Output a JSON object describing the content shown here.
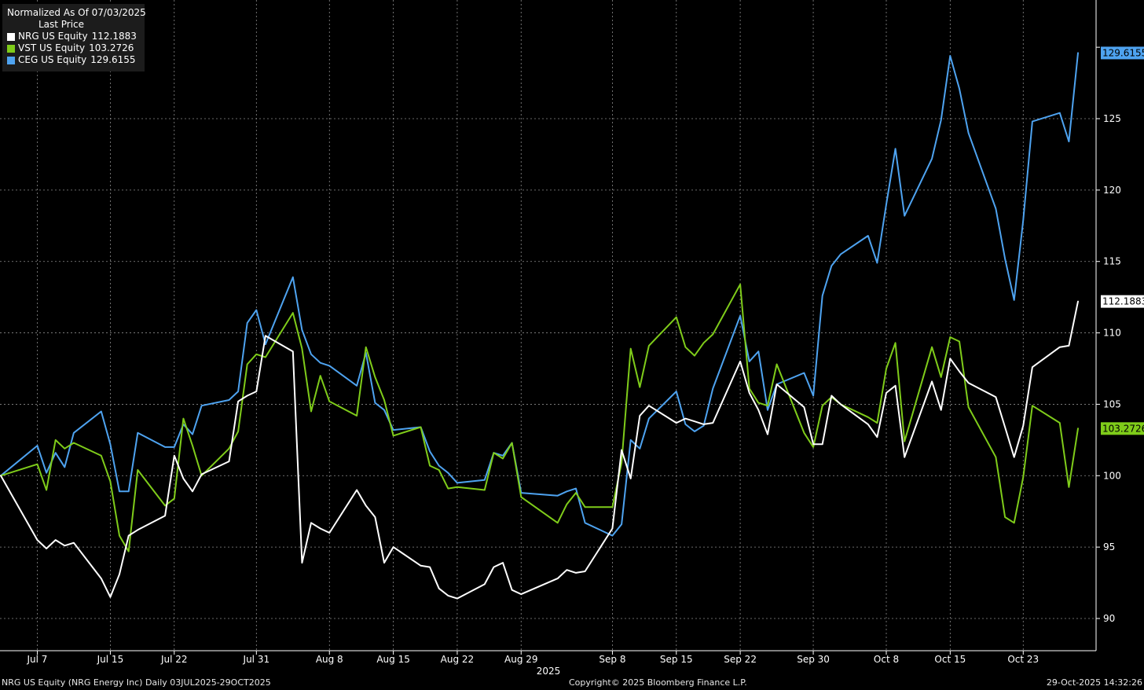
{
  "legend": {
    "title": "Normalized As Of 07/03/2025",
    "subtitle": "Last Price",
    "entries": [
      {
        "name": "NRG US Equity",
        "value": "112.1883",
        "color": "#ffffff"
      },
      {
        "name": "VST US Equity",
        "value": "103.2726",
        "color": "#7fcc1a"
      },
      {
        "name": "CEG US Equity",
        "value": "129.6155",
        "color": "#4ea3f0"
      }
    ]
  },
  "footer": {
    "left": "NRG US Equity (NRG Energy Inc) Daily 03JUL2025-29OCT2025",
    "center": "Copyright© 2025 Bloomberg Finance L.P.",
    "right": "29-Oct-2025 14:32:26"
  },
  "chart_data": {
    "type": "line",
    "x": [
      "2025-07-03",
      "2025-07-07",
      "2025-07-08",
      "2025-07-09",
      "2025-07-10",
      "2025-07-11",
      "2025-07-14",
      "2025-07-15",
      "2025-07-16",
      "2025-07-17",
      "2025-07-18",
      "2025-07-21",
      "2025-07-22",
      "2025-07-23",
      "2025-07-24",
      "2025-07-25",
      "2025-07-28",
      "2025-07-29",
      "2025-07-30",
      "2025-07-31",
      "2025-08-01",
      "2025-08-04",
      "2025-08-05",
      "2025-08-06",
      "2025-08-07",
      "2025-08-08",
      "2025-08-11",
      "2025-08-12",
      "2025-08-13",
      "2025-08-14",
      "2025-08-15",
      "2025-08-18",
      "2025-08-19",
      "2025-08-20",
      "2025-08-21",
      "2025-08-22",
      "2025-08-25",
      "2025-08-26",
      "2025-08-27",
      "2025-08-28",
      "2025-08-29",
      "2025-09-02",
      "2025-09-03",
      "2025-09-04",
      "2025-09-05",
      "2025-09-08",
      "2025-09-09",
      "2025-09-10",
      "2025-09-11",
      "2025-09-12",
      "2025-09-15",
      "2025-09-16",
      "2025-09-17",
      "2025-09-18",
      "2025-09-19",
      "2025-09-22",
      "2025-09-23",
      "2025-09-24",
      "2025-09-25",
      "2025-09-26",
      "2025-09-29",
      "2025-09-30",
      "2025-10-01",
      "2025-10-02",
      "2025-10-03",
      "2025-10-06",
      "2025-10-07",
      "2025-10-08",
      "2025-10-09",
      "2025-10-10",
      "2025-10-13",
      "2025-10-14",
      "2025-10-15",
      "2025-10-16",
      "2025-10-17",
      "2025-10-20",
      "2025-10-21",
      "2025-10-22",
      "2025-10-23",
      "2025-10-24",
      "2025-10-27",
      "2025-10-28",
      "2025-10-29"
    ],
    "series": [
      {
        "name": "NRG US Equity",
        "color": "#ffffff",
        "values": [
          100.0,
          95.5,
          94.9,
          95.5,
          95.1,
          95.3,
          92.8,
          91.5,
          93.1,
          95.8,
          96.2,
          97.2,
          101.4,
          99.8,
          98.9,
          100.1,
          101.0,
          105.2,
          105.6,
          105.9,
          109.8,
          108.7,
          93.9,
          96.7,
          96.3,
          96.0,
          99.0,
          97.9,
          97.1,
          93.9,
          95.0,
          93.7,
          93.6,
          92.1,
          91.6,
          91.4,
          92.4,
          93.6,
          93.9,
          92.0,
          91.7,
          92.8,
          93.4,
          93.2,
          93.3,
          96.3,
          101.8,
          99.8,
          104.2,
          104.9,
          103.7,
          104.0,
          103.8,
          103.6,
          103.7,
          108.0,
          105.8,
          104.6,
          102.9,
          106.4,
          104.8,
          102.2,
          102.2,
          105.6,
          105.0,
          103.6,
          102.7,
          105.8,
          106.3,
          101.3,
          106.6,
          104.6,
          108.2,
          107.3,
          106.5,
          105.5,
          103.4,
          101.3,
          103.5,
          107.6,
          109.0,
          109.1,
          112.2
        ]
      },
      {
        "name": "VST US Equity",
        "color": "#7fcc1a",
        "values": [
          100.0,
          100.8,
          99.0,
          102.5,
          101.9,
          102.3,
          101.4,
          99.6,
          95.8,
          94.7,
          100.4,
          97.9,
          98.4,
          104.0,
          102.1,
          100.0,
          101.9,
          103.1,
          107.8,
          108.5,
          108.3,
          111.4,
          108.9,
          104.5,
          107.0,
          105.2,
          104.2,
          109.0,
          106.9,
          105.3,
          102.8,
          103.4,
          100.7,
          100.4,
          99.1,
          99.2,
          99.0,
          101.6,
          101.2,
          102.3,
          98.5,
          96.7,
          98.0,
          98.8,
          97.8,
          97.8,
          100.9,
          108.9,
          106.2,
          109.1,
          111.1,
          109.0,
          108.4,
          109.3,
          109.9,
          113.4,
          106.1,
          105.1,
          104.9,
          107.8,
          103.0,
          102.0,
          104.9,
          105.5,
          105.0,
          104.1,
          103.7,
          107.5,
          109.3,
          102.4,
          109.0,
          106.9,
          109.7,
          109.4,
          104.8,
          101.3,
          97.1,
          96.7,
          99.9,
          104.9,
          103.7,
          99.2,
          103.3
        ]
      },
      {
        "name": "CEG US Equity",
        "color": "#4ea3f0",
        "values": [
          100.0,
          102.1,
          100.2,
          101.6,
          100.6,
          103.0,
          104.5,
          102.2,
          98.9,
          98.9,
          103.0,
          102.0,
          102.0,
          103.6,
          102.9,
          104.9,
          105.3,
          105.9,
          110.7,
          111.6,
          109.2,
          113.9,
          110.2,
          108.5,
          107.9,
          107.7,
          106.3,
          108.6,
          105.1,
          104.6,
          103.2,
          103.4,
          101.7,
          100.7,
          100.2,
          99.5,
          99.7,
          101.6,
          101.4,
          102.3,
          98.8,
          98.6,
          98.9,
          99.1,
          96.7,
          95.8,
          96.6,
          102.5,
          101.9,
          104.0,
          105.9,
          103.6,
          103.1,
          103.5,
          106.1,
          111.2,
          108.0,
          108.7,
          104.6,
          106.4,
          107.2,
          105.6,
          112.6,
          114.7,
          115.5,
          116.8,
          114.9,
          119.0,
          122.9,
          118.2,
          122.2,
          124.9,
          129.4,
          127.1,
          124.0,
          118.7,
          115.2,
          112.3,
          117.9,
          124.8,
          125.4,
          123.4,
          129.6
        ]
      }
    ],
    "last_labels": [
      "112.1883",
      "103.2726",
      "129.6155"
    ],
    "x_tick_labels": [
      {
        "date": "2025-07-07",
        "label": "Jul 7"
      },
      {
        "date": "2025-07-15",
        "label": "Jul 15"
      },
      {
        "date": "2025-07-22",
        "label": "Jul 22"
      },
      {
        "date": "2025-07-31",
        "label": "Jul 31"
      },
      {
        "date": "2025-08-08",
        "label": "Aug 8"
      },
      {
        "date": "2025-08-15",
        "label": "Aug 15"
      },
      {
        "date": "2025-08-22",
        "label": "Aug 22"
      },
      {
        "date": "2025-08-29",
        "label": "Aug 29"
      },
      {
        "date": "2025-09-08",
        "label": "Sep 8"
      },
      {
        "date": "2025-09-15",
        "label": "Sep 15"
      },
      {
        "date": "2025-09-22",
        "label": "Sep 22"
      },
      {
        "date": "2025-09-30",
        "label": "Sep 30"
      },
      {
        "date": "2025-10-08",
        "label": "Oct 8"
      },
      {
        "date": "2025-10-15",
        "label": "Oct 15"
      },
      {
        "date": "2025-10-23",
        "label": "Oct 23"
      }
    ],
    "x_year_label": "2025",
    "y_ticks": [
      90,
      95,
      100,
      105,
      110,
      115,
      120,
      125
    ],
    "y_tick_labels": [
      "90",
      "95",
      "100",
      "105",
      "110",
      "115",
      "120",
      "125"
    ],
    "ylim": [
      87.9,
      134.3
    ],
    "y_axis_side": "right",
    "grid": true,
    "legend_placement": "top-left",
    "background": "#000000",
    "grid_color": "#8c8c8c"
  }
}
